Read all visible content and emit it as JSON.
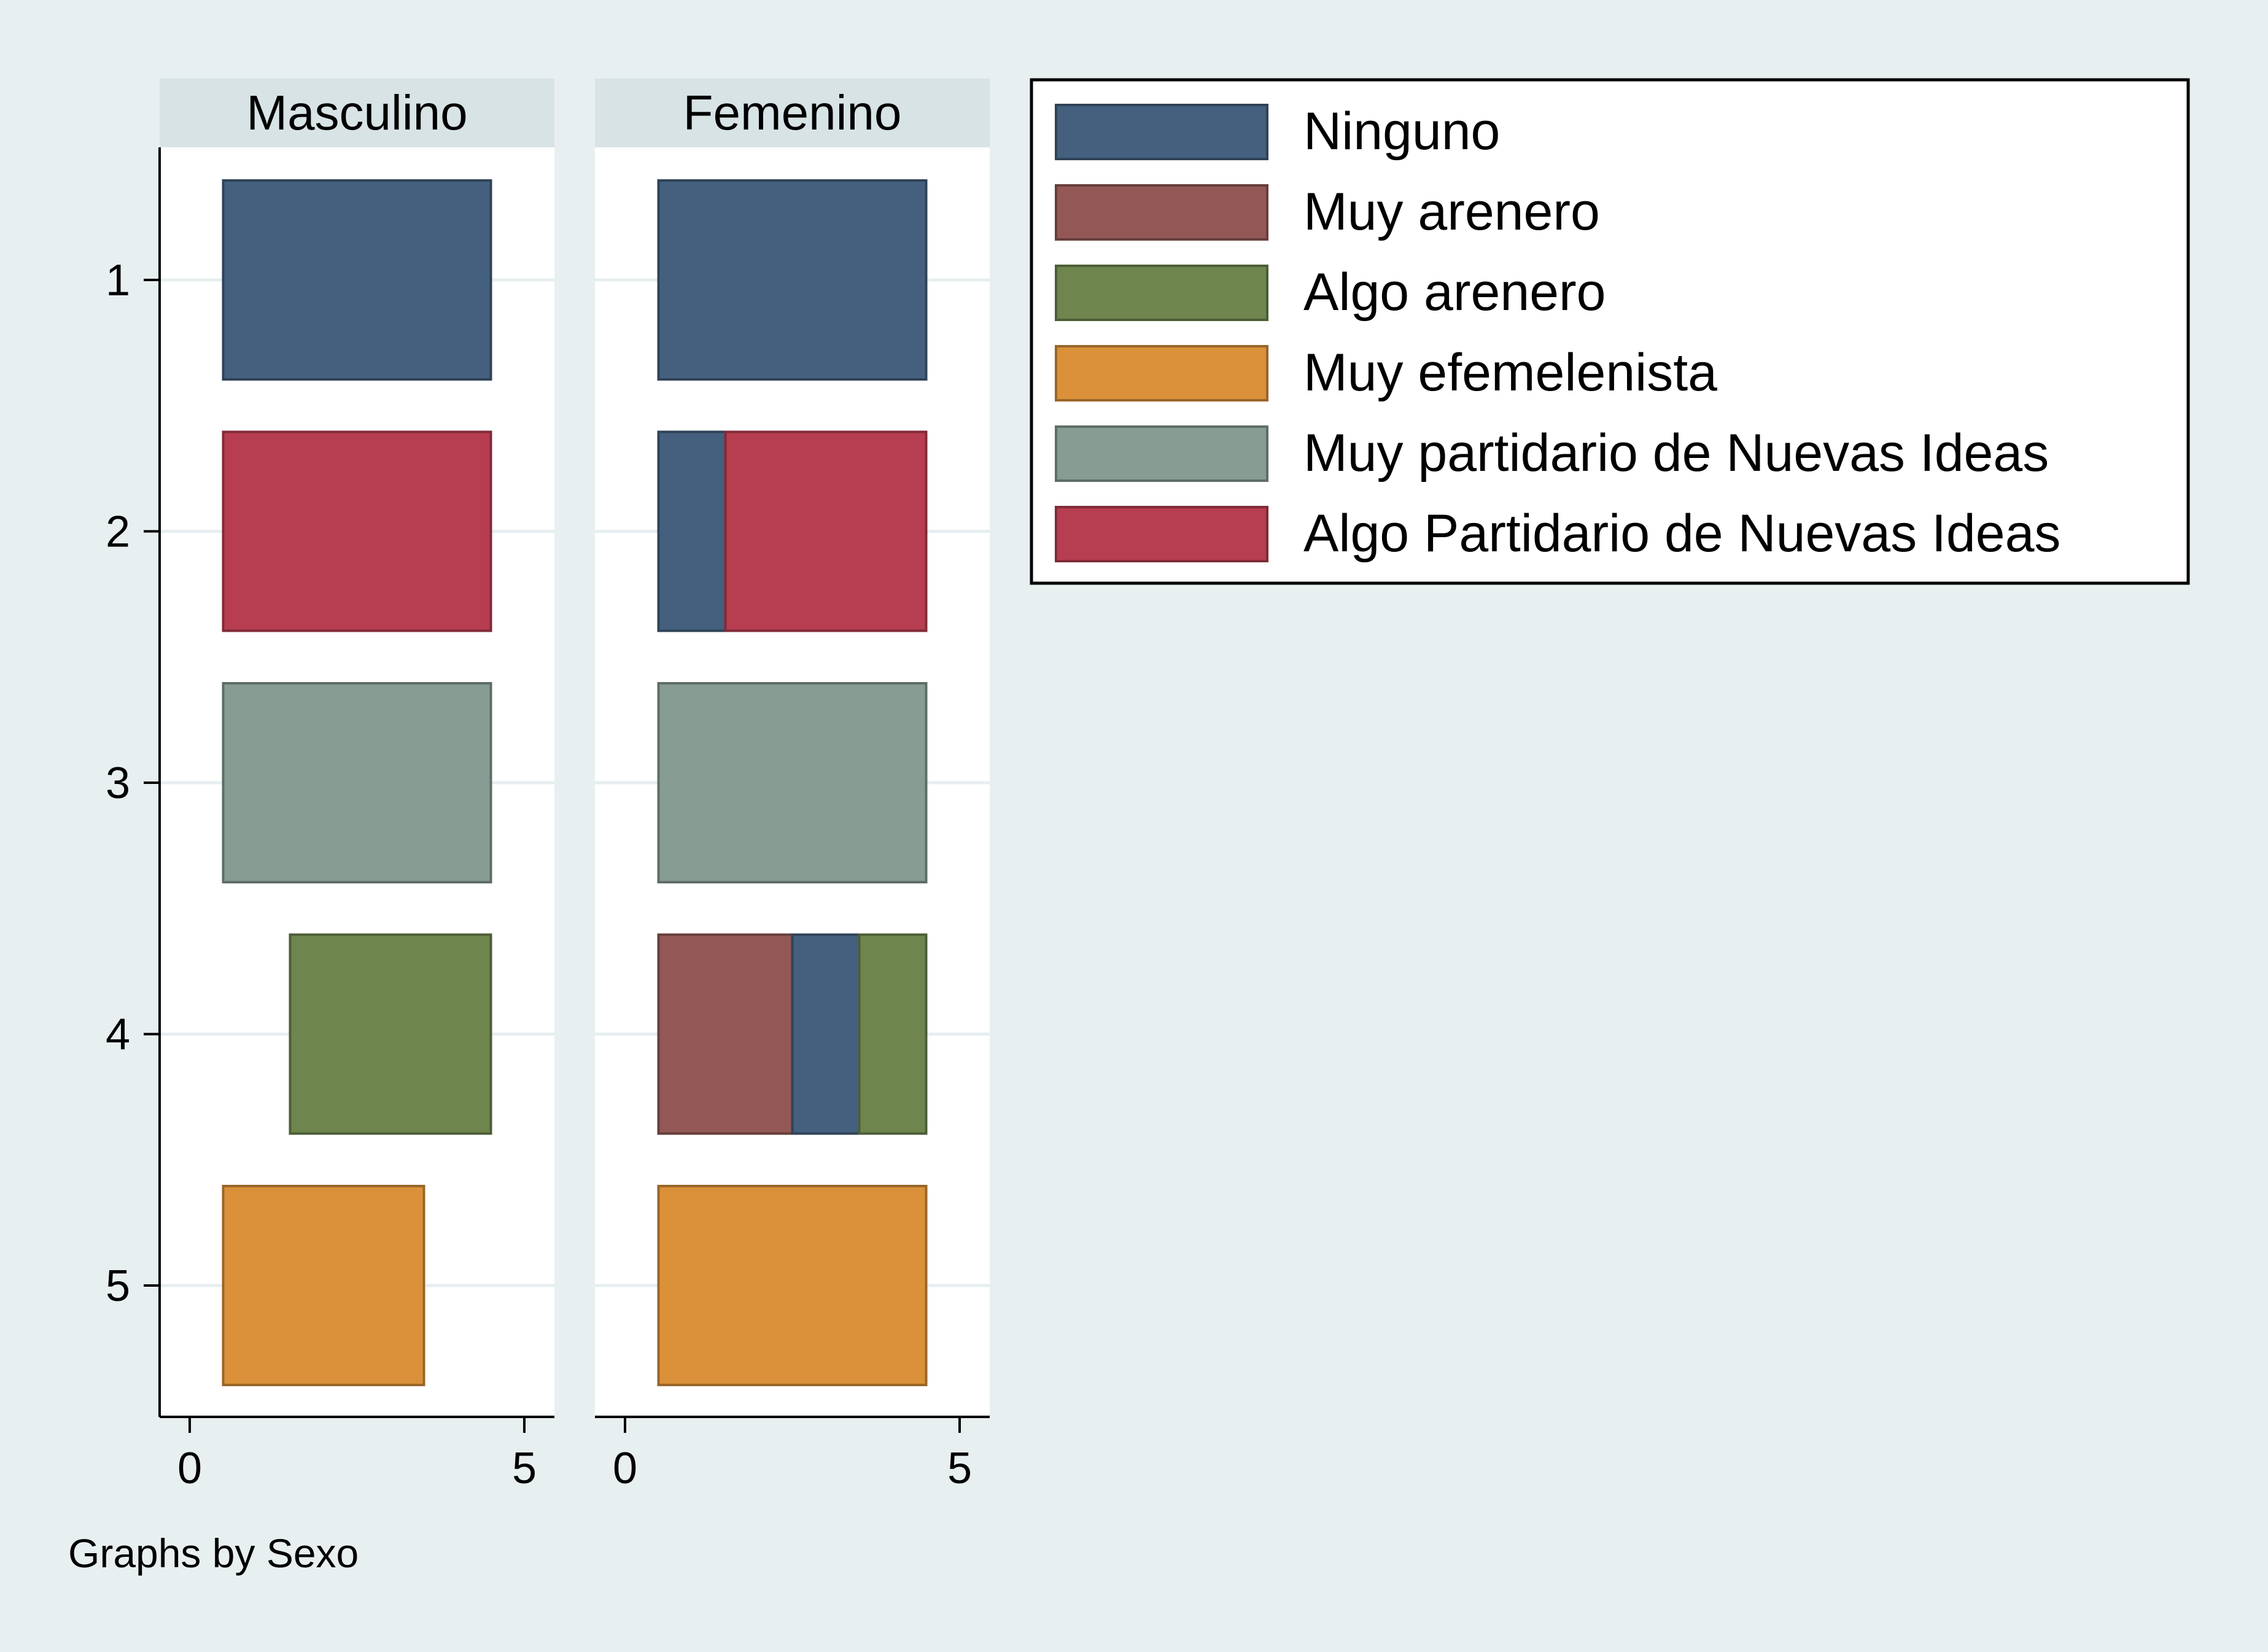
{
  "chart_data": {
    "type": "bar",
    "orientation": "horizontal",
    "stacked": true,
    "note": "Graphs by Sexo",
    "categories": [
      "1",
      "2",
      "3",
      "4",
      "5"
    ],
    "xlim": [
      0,
      5
    ],
    "x_ticks": [
      "0",
      "5"
    ],
    "grid": true,
    "legend_position": "right",
    "legend": [
      {
        "name": "Ninguno",
        "color": "#44607e"
      },
      {
        "name": "Muy arenero",
        "color": "#935856"
      },
      {
        "name": "Algo arenero",
        "color": "#6e864e"
      },
      {
        "name": "Muy efemelenista",
        "color": "#da913a"
      },
      {
        "name": "Muy partidario de Nuevas Ideas",
        "color": "#879c93"
      },
      {
        "name": "Algo Partidario de Nuevas Ideas",
        "color": "#b73d50"
      }
    ],
    "panels": [
      {
        "title": "Masculino",
        "rows": [
          {
            "category": "1",
            "segments": [
              {
                "series": "Ninguno",
                "start": 0.5,
                "end": 4.5
              }
            ]
          },
          {
            "category": "2",
            "segments": [
              {
                "series": "Algo Partidario de Nuevas Ideas",
                "start": 0.5,
                "end": 4.5
              }
            ]
          },
          {
            "category": "3",
            "segments": [
              {
                "series": "Muy partidario de Nuevas Ideas",
                "start": 0.5,
                "end": 4.5
              }
            ]
          },
          {
            "category": "4",
            "segments": [
              {
                "series": "Algo arenero",
                "start": 1.5,
                "end": 4.5
              }
            ]
          },
          {
            "category": "5",
            "segments": [
              {
                "series": "Muy efemelenista",
                "start": 0.5,
                "end": 3.5
              }
            ]
          }
        ]
      },
      {
        "title": "Femenino",
        "rows": [
          {
            "category": "1",
            "segments": [
              {
                "series": "Ninguno",
                "start": 0.5,
                "end": 4.5
              }
            ]
          },
          {
            "category": "2",
            "segments": [
              {
                "series": "Ninguno",
                "start": 0.5,
                "end": 1.5
              },
              {
                "series": "Algo Partidario de Nuevas Ideas",
                "start": 1.5,
                "end": 4.5
              }
            ]
          },
          {
            "category": "3",
            "segments": [
              {
                "series": "Muy partidario de Nuevas Ideas",
                "start": 0.5,
                "end": 4.5
              }
            ]
          },
          {
            "category": "4",
            "segments": [
              {
                "series": "Muy arenero",
                "start": 0.5,
                "end": 2.5
              },
              {
                "series": "Ninguno",
                "start": 2.5,
                "end": 3.5
              },
              {
                "series": "Algo arenero",
                "start": 3.5,
                "end": 4.5
              }
            ]
          },
          {
            "category": "5",
            "segments": [
              {
                "series": "Muy efemelenista",
                "start": 0.5,
                "end": 4.5
              }
            ]
          }
        ]
      }
    ]
  }
}
